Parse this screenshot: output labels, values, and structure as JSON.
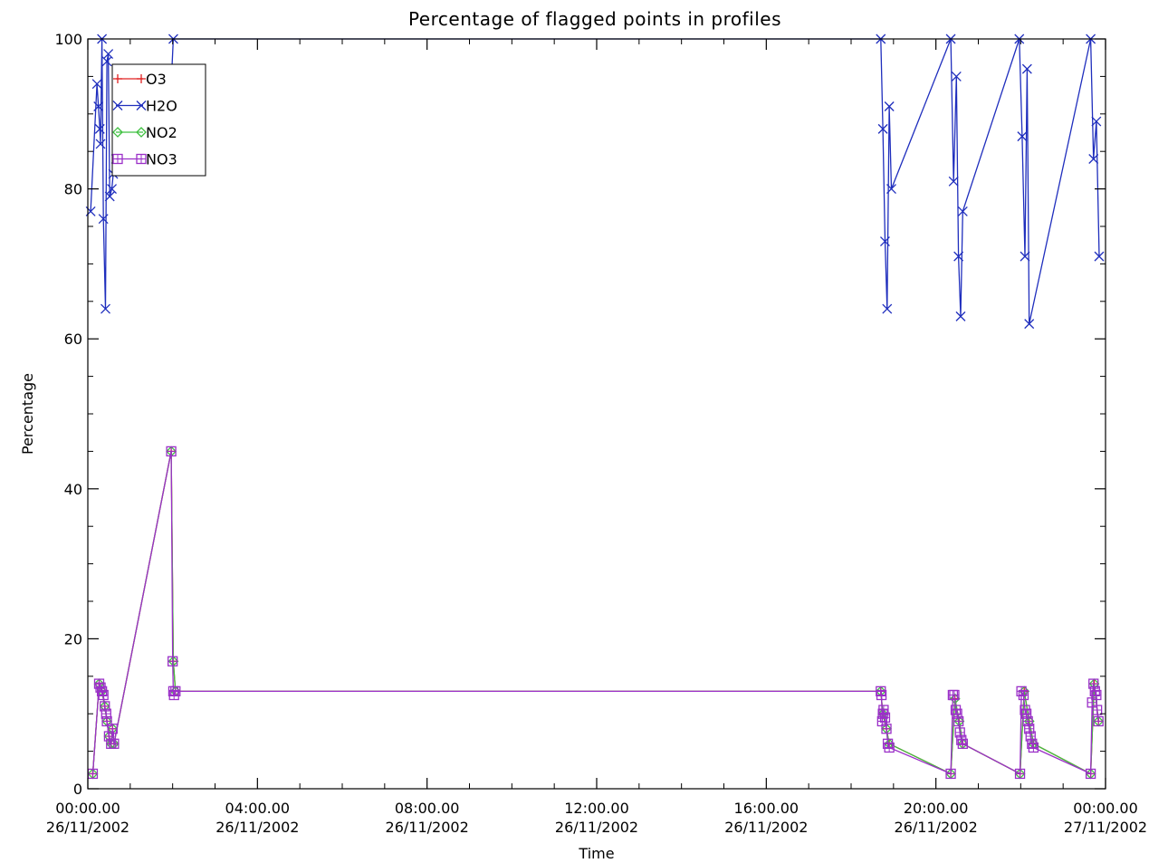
{
  "chart_data": {
    "type": "line",
    "title": "Percentage of flagged points in profiles",
    "xlabel": "Time",
    "ylabel": "Percentage",
    "xlim": [
      "26/11/2002 00:00",
      "27/11/2002 00:00"
    ],
    "ylim": [
      0,
      100
    ],
    "x_ticks": [
      {
        "time": "00:00.00",
        "date": "26/11/2002"
      },
      {
        "time": "04:00.00",
        "date": "26/11/2002"
      },
      {
        "time": "08:00.00",
        "date": "26/11/2002"
      },
      {
        "time": "12:00.00",
        "date": "26/11/2002"
      },
      {
        "time": "16:00.00",
        "date": "26/11/2002"
      },
      {
        "time": "20:00.00",
        "date": "26/11/2002"
      },
      {
        "time": "00:00.00",
        "date": "27/11/2002"
      }
    ],
    "y_ticks": [
      "0",
      "20",
      "40",
      "60",
      "80",
      "100"
    ],
    "grid": false,
    "legend_position": "top-left",
    "series": [
      {
        "name": "O3",
        "color": "#e02020",
        "marker": "plus",
        "x": [
          "26/11/2002 00:07",
          "26/11/2002 00:16",
          "26/11/2002 00:20",
          "26/11/2002 00:24",
          "26/11/2002 00:27",
          "26/11/2002 00:30",
          "26/11/2002 00:33",
          "26/11/2002 00:35",
          "26/11/2002 00:37",
          "26/11/2002 01:58",
          "26/11/2002 02:01",
          "26/11/2002 02:04",
          "26/11/2002 18:42",
          "26/11/2002 18:45",
          "26/11/2002 18:50",
          "26/11/2002 18:54",
          "26/11/2002 20:21",
          "26/11/2002 20:27",
          "26/11/2002 20:33",
          "26/11/2002 20:38",
          "26/11/2002 21:59",
          "26/11/2002 22:05",
          "26/11/2002 22:12",
          "26/11/2002 22:18",
          "26/11/2002 23:39",
          "26/11/2002 23:44",
          "26/11/2002 23:50"
        ],
        "y": [
          2,
          14,
          13,
          11,
          9,
          7,
          6,
          8,
          6,
          45,
          17,
          13,
          13,
          10,
          8,
          6,
          2,
          12,
          9,
          6,
          2,
          13,
          9,
          6,
          2,
          14,
          9
        ]
      },
      {
        "name": "H2O",
        "color": "#1f2ebd",
        "marker": "x",
        "x": [
          "26/11/2002 00:04",
          "26/11/2002 00:13",
          "26/11/2002 00:15",
          "26/11/2002 00:17",
          "26/11/2002 00:18",
          "26/11/2002 00:20",
          "26/11/2002 00:22",
          "26/11/2002 00:25",
          "26/11/2002 00:27",
          "26/11/2002 00:29",
          "26/11/2002 00:31",
          "26/11/2002 00:34",
          "26/11/2002 00:36",
          "26/11/2002 00:40",
          "26/11/2002 01:58",
          "26/11/2002 02:01",
          "26/11/2002 18:42",
          "26/11/2002 18:45",
          "26/11/2002 18:48",
          "26/11/2002 18:51",
          "26/11/2002 18:54",
          "26/11/2002 18:57",
          "26/11/2002 20:21",
          "26/11/2002 20:25",
          "26/11/2002 20:29",
          "26/11/2002 20:32",
          "26/11/2002 20:35",
          "26/11/2002 20:38",
          "26/11/2002 21:58",
          "26/11/2002 22:02",
          "26/11/2002 22:06",
          "26/11/2002 22:09",
          "26/11/2002 22:12",
          "26/11/2002 23:39",
          "26/11/2002 23:43",
          "26/11/2002 23:47",
          "26/11/2002 23:51"
        ],
        "y": [
          77,
          94,
          91,
          88,
          86,
          100,
          76,
          64,
          97,
          98,
          79,
          80,
          82,
          84,
          94,
          100,
          100,
          88,
          73,
          64,
          91,
          80,
          100,
          81,
          95,
          71,
          63,
          77,
          100,
          87,
          71,
          96,
          62,
          100,
          84,
          89,
          71
        ]
      },
      {
        "name": "NO2",
        "color": "#3fc040",
        "marker": "diamond",
        "x": [
          "26/11/2002 00:07",
          "26/11/2002 00:16",
          "26/11/2002 00:20",
          "26/11/2002 00:24",
          "26/11/2002 00:27",
          "26/11/2002 00:30",
          "26/11/2002 00:33",
          "26/11/2002 00:35",
          "26/11/2002 00:37",
          "26/11/2002 01:58",
          "26/11/2002 02:01",
          "26/11/2002 02:04",
          "26/11/2002 18:42",
          "26/11/2002 18:45",
          "26/11/2002 18:50",
          "26/11/2002 18:54",
          "26/11/2002 20:21",
          "26/11/2002 20:27",
          "26/11/2002 20:33",
          "26/11/2002 20:38",
          "26/11/2002 21:59",
          "26/11/2002 22:05",
          "26/11/2002 22:12",
          "26/11/2002 22:18",
          "26/11/2002 23:39",
          "26/11/2002 23:44",
          "26/11/2002 23:50"
        ],
        "y": [
          2,
          14,
          13,
          11,
          9,
          7,
          6,
          8,
          6,
          45,
          17,
          13,
          13,
          10,
          8,
          6,
          2,
          12,
          9,
          6,
          2,
          13,
          9,
          6,
          2,
          14,
          9
        ]
      },
      {
        "name": "NO3",
        "color": "#9b30c8",
        "marker": "square",
        "x": [
          "26/11/2002 00:07",
          "26/11/2002 00:16",
          "26/11/2002 00:18",
          "26/11/2002 00:20",
          "26/11/2002 00:22",
          "26/11/2002 00:24",
          "26/11/2002 00:26",
          "26/11/2002 00:27",
          "26/11/2002 00:30",
          "26/11/2002 00:33",
          "26/11/2002 00:35",
          "26/11/2002 00:37",
          "26/11/2002 01:58",
          "26/11/2002 02:00",
          "26/11/2002 02:01",
          "26/11/2002 02:02",
          "26/11/2002 02:04",
          "26/11/2002 18:42",
          "26/11/2002 18:43",
          "26/11/2002 18:44",
          "26/11/2002 18:45",
          "26/11/2002 18:46",
          "26/11/2002 18:48",
          "26/11/2002 18:50",
          "26/11/2002 18:52",
          "26/11/2002 18:54",
          "26/11/2002 20:21",
          "26/11/2002 20:24",
          "26/11/2002 20:26",
          "26/11/2002 20:28",
          "26/11/2002 20:30",
          "26/11/2002 20:32",
          "26/11/2002 20:34",
          "26/11/2002 20:36",
          "26/11/2002 20:38",
          "26/11/2002 21:59",
          "26/11/2002 22:01",
          "26/11/2002 22:04",
          "26/11/2002 22:06",
          "26/11/2002 22:08",
          "26/11/2002 22:10",
          "26/11/2002 22:12",
          "26/11/2002 22:14",
          "26/11/2002 22:16",
          "26/11/2002 22:18",
          "26/11/2002 23:39",
          "26/11/2002 23:41",
          "26/11/2002 23:43",
          "26/11/2002 23:45",
          "26/11/2002 23:47",
          "26/11/2002 23:48",
          "26/11/2002 23:50"
        ],
        "y": [
          2,
          14,
          13.5,
          13,
          12.5,
          11,
          10,
          9,
          7,
          6,
          8,
          6,
          45,
          17,
          13,
          12.5,
          13,
          13,
          12.5,
          9,
          10,
          10.5,
          9.5,
          8,
          6,
          5.5,
          2,
          12.5,
          12.5,
          10.5,
          10,
          9,
          7.5,
          6.5,
          6,
          2,
          13,
          12.5,
          10.5,
          10,
          9,
          8,
          7,
          6,
          5.5,
          2,
          11.5,
          14,
          13,
          12.5,
          10.5,
          9
        ]
      }
    ]
  }
}
